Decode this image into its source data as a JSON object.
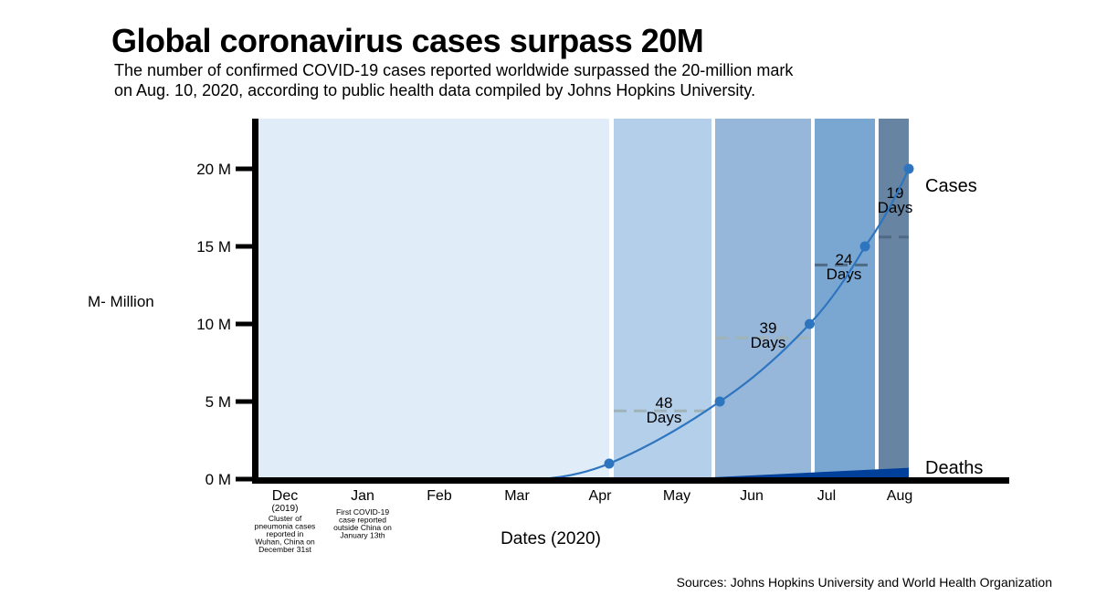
{
  "title": "Global coronavirus cases surpass 20M",
  "subtitle_lines": [
    "The number of confirmed COVID-19 cases reported worldwide surpassed the 20-million mark",
    "on Aug. 10, 2020, according to public health data compiled by Johns Hopkins University."
  ],
  "source": "Sources: Johns Hopkins University and World Health Organization",
  "chart_data": {
    "type": "line",
    "xlabel": "Dates (2020)",
    "ylabel": "M- Million",
    "ylim": [
      0,
      23
    ],
    "y_ticks": [
      "0 M",
      "5 M",
      "10 M",
      "15 M",
      "20 M"
    ],
    "y_tick_values": [
      0,
      5,
      10,
      15,
      20
    ],
    "x_ticks": [
      {
        "label": "Dec",
        "sub": "(2019)",
        "note": [
          "Cluster of",
          "pneumonia cases",
          "reported in",
          "Wuhan, China on",
          "December 31st"
        ]
      },
      {
        "label": "Jan",
        "note": [
          "First COVID-19",
          "case reported",
          "outside China on",
          "January 13th"
        ]
      },
      {
        "label": "Feb"
      },
      {
        "label": "Mar"
      },
      {
        "label": "Apr"
      },
      {
        "label": "May"
      },
      {
        "label": "Jun"
      },
      {
        "label": "Jul"
      },
      {
        "label": "Aug"
      }
    ],
    "series": [
      {
        "name": "Cases",
        "color": "#2e75c0",
        "points": [
          {
            "date": "2020-04-02",
            "value": 1
          },
          {
            "date": "2020-05-20",
            "value": 5
          },
          {
            "date": "2020-06-28",
            "value": 10
          },
          {
            "date": "2020-07-22",
            "value": 15
          },
          {
            "date": "2020-08-10",
            "value": 20
          }
        ]
      },
      {
        "name": "Deaths",
        "color": "#003f9a",
        "type": "area",
        "end_value": 0.73
      }
    ],
    "intervals": [
      {
        "days": "48",
        "unit": "Days",
        "color": "#b4cfea"
      },
      {
        "days": "39",
        "unit": "Days",
        "color": "#96b7d9"
      },
      {
        "days": "24",
        "unit": "Days",
        "color": "#7aa6d2"
      },
      {
        "days": "19",
        "unit": "Days",
        "color": "#6785a3"
      }
    ],
    "background_color": "#e0ecf8",
    "grid": false
  }
}
